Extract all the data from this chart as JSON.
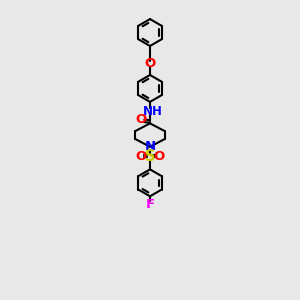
{
  "bg_color": "#e8e8e8",
  "bond_color": "#000000",
  "bond_width": 1.5,
  "N_color": "#0000ff",
  "O_color": "#ff0000",
  "S_color": "#cccc00",
  "F_color": "#ff00ff",
  "label_fontsize": 8.5,
  "figsize": [
    3.0,
    3.0
  ],
  "dpi": 100,
  "xlim": [
    0,
    10
  ],
  "ylim": [
    0,
    21
  ]
}
